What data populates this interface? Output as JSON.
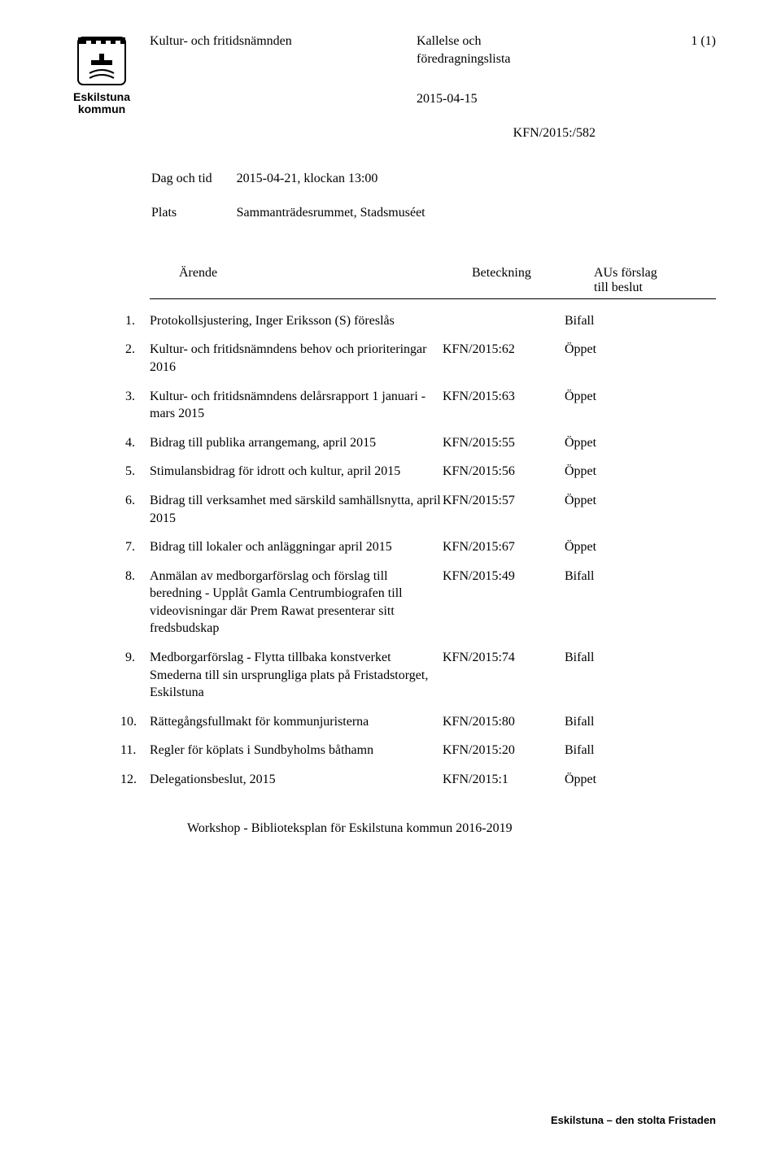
{
  "logo": {
    "line1": "Eskilstuna",
    "line2": "kommun"
  },
  "header": {
    "committee": "Kultur- och fritidsnämnden",
    "doc_type_line1": "Kallelse och",
    "doc_type_line2": "föredragningslista",
    "page_indicator": "1 (1)",
    "date": "2015-04-15",
    "reference": "KFN/2015:/582"
  },
  "meeting": {
    "dag_label": "Dag och tid",
    "dag_value": "2015-04-21, klockan 13:00",
    "plats_label": "Plats",
    "plats_value": "Sammanträdesrummet, Stadsmuséet"
  },
  "columns": {
    "arende": "Ärende",
    "beteckning": "Beteckning",
    "forslag_line1": "AUs förslag",
    "forslag_line2": "till beslut"
  },
  "items": [
    {
      "n": "1.",
      "title": "Protokollsjustering, Inger Eriksson (S) föreslås",
      "ref": "",
      "dec": "Bifall"
    },
    {
      "n": "2.",
      "title": "Kultur- och fritidsnämndens behov och prioriteringar 2016",
      "ref": "KFN/2015:62",
      "dec": "Öppet"
    },
    {
      "n": "3.",
      "title": "Kultur- och fritidsnämndens delårsrapport 1 januari - mars 2015",
      "ref": "KFN/2015:63",
      "dec": "Öppet"
    },
    {
      "n": "4.",
      "title": "Bidrag till publika arrangemang, april 2015",
      "ref": "KFN/2015:55",
      "dec": "Öppet"
    },
    {
      "n": "5.",
      "title": "Stimulansbidrag för idrott och kultur, april 2015",
      "ref": "KFN/2015:56",
      "dec": "Öppet"
    },
    {
      "n": "6.",
      "title": "Bidrag till verksamhet med särskild samhällsnytta, april 2015",
      "ref": "KFN/2015:57",
      "dec": "Öppet"
    },
    {
      "n": "7.",
      "title": "Bidrag till lokaler och anläggningar april 2015",
      "ref": "KFN/2015:67",
      "dec": "Öppet"
    },
    {
      "n": "8.",
      "title": "Anmälan av medborgarförslag och förslag till beredning - Upplåt Gamla Centrumbiografen till videovisningar där Prem Rawat presenterar sitt fredsbudskap",
      "ref": "KFN/2015:49",
      "dec": "Bifall"
    },
    {
      "n": "9.",
      "title": "Medborgarförslag - Flytta tillbaka konstverket Smederna till sin ursprungliga plats på Fristadstorget, Eskilstuna",
      "ref": "KFN/2015:74",
      "dec": "Bifall"
    },
    {
      "n": "10.",
      "title": "Rättegångsfullmakt för kommunjuristerna",
      "ref": "KFN/2015:80",
      "dec": "Bifall"
    },
    {
      "n": "11.",
      "title": "Regler för köplats i Sundbyholms båthamn",
      "ref": "KFN/2015:20",
      "dec": "Bifall"
    },
    {
      "n": "12.",
      "title": "Delegationsbeslut, 2015",
      "ref": "KFN/2015:1",
      "dec": "Öppet"
    }
  ],
  "workshop": "Workshop - Biblioteksplan för Eskilstuna kommun 2016-2019",
  "footer": "Eskilstuna – den stolta Fristaden"
}
